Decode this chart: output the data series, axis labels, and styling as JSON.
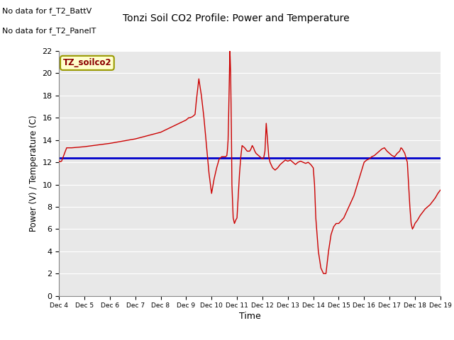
{
  "title": "Tonzi Soil CO2 Profile: Power and Temperature",
  "ylabel": "Power (V) / Temperature (C)",
  "xlabel": "Time",
  "no_data_text1": "No data for f_T2_BattV",
  "no_data_text2": "No data for f_T2_PanelT",
  "box_label": "TZ_soilco2",
  "ylim": [
    0,
    22
  ],
  "yticks": [
    0,
    2,
    4,
    6,
    8,
    10,
    12,
    14,
    16,
    18,
    20,
    22
  ],
  "xtick_labels": [
    "Dec 4",
    "Dec 5",
    "Dec 6",
    "Dec 7",
    "Dec 8",
    "Dec 9",
    "Dec 10",
    "Dec 11",
    "Dec 12",
    "Dec 13",
    "Dec 14",
    "Dec 15",
    "Dec 16",
    "Dec 17",
    "Dec 18",
    "Dec 19"
  ],
  "bg_color": "#e8e8e8",
  "voltage_value": 12.4,
  "voltage_color": "#0000cc",
  "temp_color": "#cc0000",
  "temp_data_x": [
    0,
    0.05,
    0.1,
    0.3,
    0.5,
    1.0,
    2.0,
    3.0,
    4.0,
    5.0,
    5.05,
    5.1,
    5.15,
    5.2,
    5.25,
    5.3,
    5.35,
    5.4,
    5.45,
    5.5,
    5.6,
    5.7,
    5.8,
    5.9,
    6.0,
    6.1,
    6.2,
    6.3,
    6.4,
    6.45,
    6.5,
    6.55,
    6.6,
    6.62,
    6.65,
    6.67,
    6.7,
    6.72,
    6.73,
    6.75,
    6.78,
    6.8,
    6.85,
    6.9,
    6.95,
    7.0,
    7.05,
    7.1,
    7.15,
    7.2,
    7.3,
    7.4,
    7.5,
    7.55,
    7.6,
    7.65,
    7.7,
    7.75,
    7.8,
    7.85,
    7.9,
    7.95,
    8.0,
    8.05,
    8.1,
    8.15,
    8.2,
    8.25,
    8.3,
    8.4,
    8.5,
    8.6,
    8.7,
    8.8,
    8.9,
    9.0,
    9.1,
    9.2,
    9.3,
    9.4,
    9.5,
    9.6,
    9.7,
    9.8,
    9.9,
    10.0,
    10.05,
    10.1,
    10.2,
    10.3,
    10.4,
    10.45,
    10.5,
    10.6,
    10.7,
    10.8,
    10.9,
    11.0,
    11.2,
    11.4,
    11.6,
    11.8,
    12.0,
    12.1,
    12.2,
    12.3,
    12.4,
    12.5,
    12.6,
    12.7,
    12.8,
    12.9,
    13.0,
    13.1,
    13.2,
    13.3,
    13.4,
    13.45,
    13.5,
    13.55,
    13.6,
    13.7,
    13.8,
    13.85,
    13.9,
    13.95,
    14.0,
    14.1,
    14.2,
    14.3,
    14.4,
    14.5,
    14.6,
    14.7,
    14.8,
    14.9,
    15.0
  ],
  "temp_data_y": [
    12.1,
    12.05,
    12.1,
    13.3,
    13.3,
    13.4,
    13.7,
    14.1,
    14.7,
    15.8,
    15.9,
    16.0,
    16.0,
    16.05,
    16.1,
    16.2,
    16.3,
    17.5,
    18.5,
    19.5,
    18.0,
    16.0,
    13.5,
    11.0,
    9.2,
    10.5,
    11.5,
    12.3,
    12.5,
    12.5,
    12.5,
    12.5,
    12.6,
    13.0,
    14.0,
    16.0,
    19.5,
    22.0,
    21.5,
    20.0,
    15.0,
    10.0,
    7.0,
    6.5,
    6.8,
    7.0,
    9.0,
    11.0,
    12.5,
    13.5,
    13.3,
    13.0,
    13.0,
    13.2,
    13.5,
    13.3,
    13.0,
    12.8,
    12.7,
    12.6,
    12.5,
    12.4,
    12.3,
    12.4,
    13.0,
    15.5,
    14.0,
    12.5,
    12.0,
    11.5,
    11.3,
    11.5,
    11.8,
    12.0,
    12.2,
    12.1,
    12.2,
    12.0,
    11.8,
    12.0,
    12.1,
    12.0,
    11.9,
    12.0,
    11.8,
    11.5,
    10.0,
    7.0,
    4.0,
    2.5,
    2.0,
    2.0,
    2.0,
    4.0,
    5.5,
    6.2,
    6.5,
    6.5,
    7.0,
    8.0,
    9.0,
    10.5,
    12.0,
    12.2,
    12.3,
    12.5,
    12.6,
    12.8,
    13.0,
    13.2,
    13.3,
    13.0,
    12.8,
    12.6,
    12.5,
    12.8,
    13.0,
    13.3,
    13.2,
    13.0,
    12.8,
    12.0,
    8.0,
    6.5,
    6.0,
    6.2,
    6.5,
    6.8,
    7.2,
    7.5,
    7.8,
    8.0,
    8.2,
    8.5,
    8.8,
    9.2,
    9.5
  ]
}
